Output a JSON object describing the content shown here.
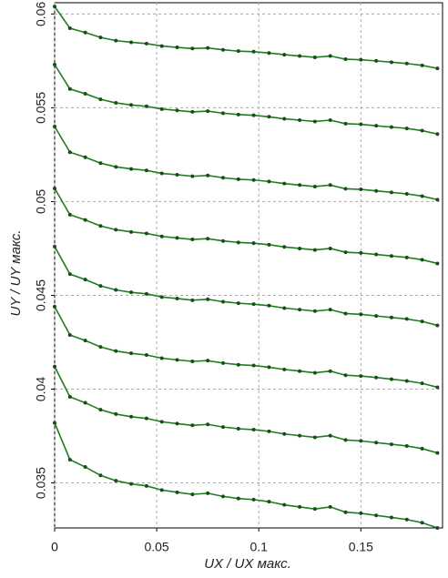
{
  "chart_data": {
    "type": "line",
    "xlabel": "UX / UX макс.",
    "ylabel": "UY / UY макс.",
    "x": [
      0,
      0.0075,
      0.015,
      0.0225,
      0.03,
      0.0375,
      0.045,
      0.0525,
      0.06,
      0.0675,
      0.075,
      0.0825,
      0.09,
      0.0975,
      0.105,
      0.1125,
      0.12,
      0.1275,
      0.135,
      0.1425,
      0.15,
      0.1575,
      0.165,
      0.1725,
      0.18,
      0.1875
    ],
    "series": [
      {
        "color": "#1e7d1e",
        "values": [
          0.0604,
          0.05924,
          0.05901,
          0.05875,
          0.05858,
          0.05849,
          0.05842,
          0.05829,
          0.05822,
          0.05816,
          0.05819,
          0.05809,
          0.05802,
          0.05799,
          0.05792,
          0.05783,
          0.05776,
          0.05769,
          0.05776,
          0.05759,
          0.05756,
          0.0575,
          0.05743,
          0.05736,
          0.05726,
          0.0571
        ]
      },
      {
        "color": "#1e7d1e",
        "values": [
          0.0573,
          0.056,
          0.05575,
          0.05545,
          0.05526,
          0.05515,
          0.05508,
          0.05493,
          0.05486,
          0.05478,
          0.05482,
          0.05471,
          0.05464,
          0.0546,
          0.05452,
          0.05441,
          0.05434,
          0.05427,
          0.05434,
          0.05415,
          0.05412,
          0.05404,
          0.05397,
          0.0539,
          0.05378,
          0.0536
        ]
      },
      {
        "color": "#1e7d1e",
        "values": [
          0.054,
          0.05263,
          0.05236,
          0.05205,
          0.05185,
          0.05174,
          0.05166,
          0.0515,
          0.05143,
          0.05135,
          0.05139,
          0.05127,
          0.05119,
          0.05115,
          0.05107,
          0.05096,
          0.05088,
          0.0508,
          0.05088,
          0.05068,
          0.05065,
          0.05057,
          0.05049,
          0.05041,
          0.05029,
          0.0501
        ]
      },
      {
        "color": "#1e7d1e",
        "values": [
          0.0507,
          0.0493,
          0.04902,
          0.0487,
          0.0485,
          0.04838,
          0.0483,
          0.04814,
          0.04806,
          0.04798,
          0.04802,
          0.0479,
          0.04782,
          0.04778,
          0.0477,
          0.04758,
          0.0475,
          0.04742,
          0.0475,
          0.0473,
          0.04726,
          0.04718,
          0.0471,
          0.04702,
          0.0469,
          0.0467
        ]
      },
      {
        "color": "#1e7d1e",
        "values": [
          0.0476,
          0.04613,
          0.04584,
          0.0455,
          0.04529,
          0.04516,
          0.04508,
          0.04491,
          0.04483,
          0.04474,
          0.04479,
          0.04466,
          0.04458,
          0.04453,
          0.04445,
          0.04432,
          0.04424,
          0.04416,
          0.04424,
          0.04403,
          0.04399,
          0.0439,
          0.04382,
          0.04374,
          0.04361,
          0.0434
        ]
      },
      {
        "color": "#1e7d1e",
        "values": [
          0.0444,
          0.04289,
          0.04259,
          0.04225,
          0.04203,
          0.04191,
          0.04182,
          0.04165,
          0.04156,
          0.04148,
          0.04152,
          0.04139,
          0.0413,
          0.04126,
          0.04117,
          0.04105,
          0.04096,
          0.04087,
          0.04096,
          0.04074,
          0.0407,
          0.04062,
          0.04053,
          0.04044,
          0.04031,
          0.0401
        ]
      },
      {
        "color": "#1e7d1e",
        "values": [
          0.0412,
          0.03959,
          0.03927,
          0.0389,
          0.03867,
          0.03853,
          0.03844,
          0.03826,
          0.03816,
          0.03807,
          0.03812,
          0.03798,
          0.03789,
          0.03784,
          0.03775,
          0.03761,
          0.03752,
          0.03743,
          0.03752,
          0.03729,
          0.03724,
          0.03715,
          0.03706,
          0.03697,
          0.03683,
          0.0366
        ]
      },
      {
        "color": "#1e7d1e",
        "values": [
          0.0382,
          0.03624,
          0.03585,
          0.0354,
          0.03512,
          0.03495,
          0.03484,
          0.03462,
          0.0345,
          0.03439,
          0.03445,
          0.03428,
          0.03417,
          0.03411,
          0.034,
          0.03383,
          0.03372,
          0.03361,
          0.03372,
          0.03344,
          0.03338,
          0.03327,
          0.03316,
          0.03305,
          0.03288,
          0.0326
        ]
      }
    ],
    "marker_color": "#1a4d1a",
    "xlim": [
      0,
      0.19
    ],
    "xticks": [
      0,
      0.05,
      0.1,
      0.15
    ],
    "ylim": [
      0.0326,
      0.0606
    ],
    "yticks": [
      0.035,
      0.04,
      0.045,
      0.05,
      0.055,
      0.06
    ],
    "grid": true
  }
}
